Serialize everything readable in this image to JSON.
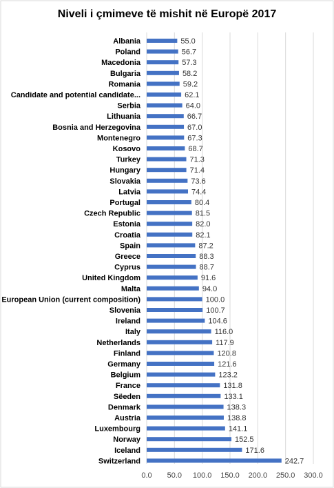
{
  "chart_data": {
    "type": "bar",
    "orientation": "horizontal",
    "title": "Niveli i çmimeve të mishit në Europë 2017",
    "xlabel": "",
    "ylabel": "",
    "xlim": [
      0,
      300
    ],
    "ticks": [
      "0.0",
      "50.0",
      "100.0",
      "150.0",
      "200.0",
      "250.0",
      "300.0"
    ],
    "grid": true,
    "bar_color": "#4472C4",
    "categories": [
      "Albania",
      "Poland",
      "Macedonia",
      "Bulgaria",
      "Romania",
      "Candidate and potential candidate...",
      "Serbia",
      "Lithuania",
      "Bosnia and Herzegovina",
      "Montenegro",
      "Kosovo",
      "Turkey",
      "Hungary",
      "Slovakia",
      "Latvia",
      "Portugal",
      "Czech Republic",
      "Estonia",
      "Croatia",
      "Spain",
      "Greece",
      "Cyprus",
      "United Kingdom",
      "Malta",
      "European Union (current composition)",
      "Slovenia",
      "Ireland",
      "Italy",
      "Netherlands",
      "Finland",
      "Germany",
      "Belgium",
      "France",
      "Sëeden",
      "Denmark",
      "Austria",
      "Luxembourg",
      "Norway",
      "Iceland",
      "Switzerland"
    ],
    "values": [
      55.0,
      56.7,
      57.3,
      58.2,
      59.2,
      62.1,
      64.0,
      66.7,
      67.0,
      67.3,
      68.7,
      71.3,
      71.4,
      73.6,
      74.4,
      80.4,
      81.5,
      82.0,
      82.1,
      87.2,
      88.3,
      88.7,
      91.6,
      94.0,
      100.0,
      100.7,
      104.6,
      116.0,
      117.9,
      120.8,
      121.6,
      123.2,
      131.8,
      133.1,
      138.3,
      138.8,
      141.1,
      152.5,
      171.6,
      242.7
    ],
    "value_labels": [
      "55.0",
      "56.7",
      "57.3",
      "58.2",
      "59.2",
      "62.1",
      "64.0",
      "66.7",
      "67.0",
      "67.3",
      "68.7",
      "71.3",
      "71.4",
      "73.6",
      "74.4",
      "80.4",
      "81.5",
      "82.0",
      "82.1",
      "87.2",
      "88.3",
      "88.7",
      "91.6",
      "94.0",
      "100.0",
      "100.7",
      "104.6",
      "116.0",
      "117.9",
      "120.8",
      "121.6",
      "123.2",
      "131.8",
      "133.1",
      "138.3",
      "138.8",
      "141.1",
      "152.5",
      "171.6",
      "242.7"
    ]
  }
}
